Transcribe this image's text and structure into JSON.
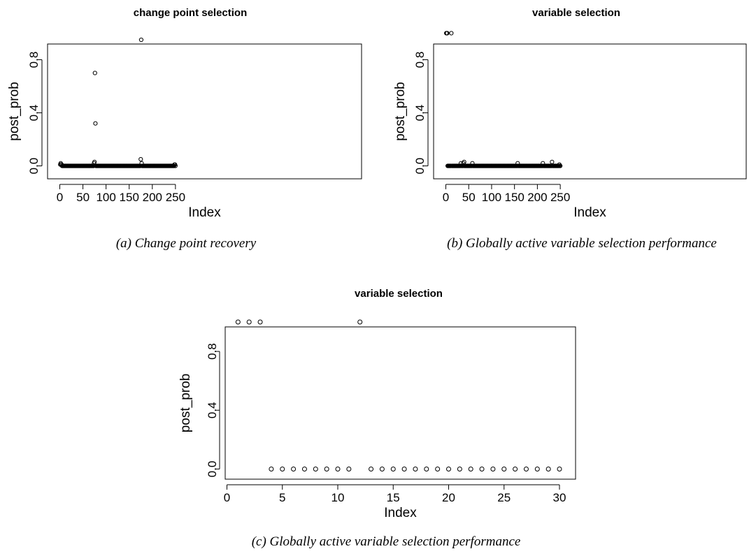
{
  "chart_data": [
    {
      "type": "scatter",
      "title": "change point selection",
      "xlabel": "Index",
      "ylabel": "post_prob",
      "xlim": [
        1,
        250
      ],
      "ylim": [
        0,
        0.94
      ],
      "xticks": [
        "0",
        "50",
        "100",
        "150",
        "200",
        "250"
      ],
      "yticks": [
        "0.0",
        "0.4",
        "0.8"
      ],
      "caption": "(a) Change point recovery",
      "n": 250,
      "baseline": 0.0,
      "points": [
        [
          1,
          0.01
        ],
        [
          2,
          0.02
        ],
        [
          3,
          0.01
        ],
        [
          4,
          0.01
        ],
        [
          74,
          0.02
        ],
        [
          75,
          0.03
        ],
        [
          76,
          0.7
        ],
        [
          77,
          0.32
        ],
        [
          175,
          0.05
        ],
        [
          176,
          0.95
        ],
        [
          177,
          0.02
        ],
        [
          248,
          0.01
        ],
        [
          249,
          0.01
        ]
      ]
    },
    {
      "type": "scatter",
      "title": "variable  selection",
      "xlabel": "Index",
      "ylabel": "post_prob",
      "xlim": [
        1,
        250
      ],
      "ylim": [
        0,
        1
      ],
      "xticks": [
        "0",
        "50",
        "100",
        "150",
        "200",
        "250"
      ],
      "yticks": [
        "0.0",
        "0.4",
        "0.8"
      ],
      "caption": "(b) Globally active variable selection performance",
      "n": 250,
      "baseline": 0.0,
      "points": [
        [
          1,
          1.0
        ],
        [
          2,
          1.0
        ],
        [
          3,
          1.0
        ],
        [
          12,
          1.0
        ],
        [
          33,
          0.02
        ],
        [
          38,
          0.02
        ],
        [
          40,
          0.03
        ],
        [
          58,
          0.02
        ],
        [
          157,
          0.02
        ],
        [
          212,
          0.02
        ],
        [
          232,
          0.03
        ],
        [
          248,
          0.01
        ]
      ]
    },
    {
      "type": "scatter",
      "title": "variable  selection",
      "xlabel": "Index",
      "ylabel": "post_prob",
      "xlim": [
        1,
        30
      ],
      "ylim": [
        0,
        1
      ],
      "xticks": [
        "0",
        "5",
        "10",
        "15",
        "20",
        "25",
        "30"
      ],
      "yticks": [
        "0.0",
        "0.4",
        "0.8"
      ],
      "caption": "(c) Globally active variable selection performance",
      "n": 30,
      "baseline": 0.0,
      "points": [
        [
          1,
          1.0
        ],
        [
          2,
          1.0
        ],
        [
          3,
          1.0
        ],
        [
          12,
          1.0
        ]
      ]
    }
  ]
}
